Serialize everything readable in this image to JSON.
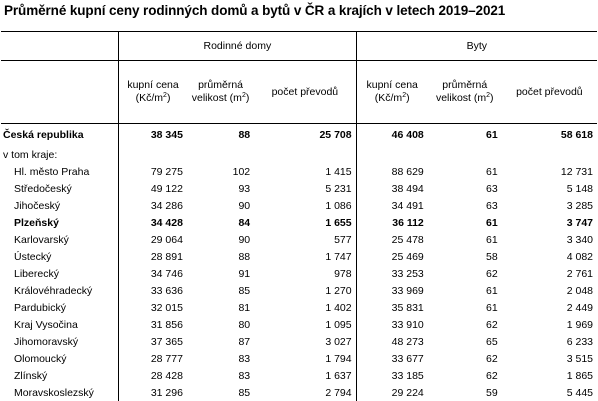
{
  "title": "Průměrné kupní ceny rodinných domů a bytů v ČR a krajích v letech 2019–2021",
  "groups": {
    "houses": "Rodinné domy",
    "flats": "Byty"
  },
  "subheaders": {
    "price_line1": "kupní cena",
    "price_line2": "(Kč/m",
    "price_sup": "2",
    "price_close": ")",
    "size_line1": "průměrná",
    "size_line2": "velikost (m",
    "size_sup": "2",
    "size_close": ")",
    "count": "počet převodů"
  },
  "rows": [
    {
      "label": "Česká republika",
      "h_price": "38 345",
      "h_size": "88",
      "h_count": "25 708",
      "f_price": "46 408",
      "f_size": "61",
      "f_count": "58 618",
      "bold": true,
      "indent": false
    },
    {
      "label": "v tom kraje:",
      "h_price": "",
      "h_size": "",
      "h_count": "",
      "f_price": "",
      "f_size": "",
      "f_count": "",
      "bold": false,
      "indent": false
    },
    {
      "label": "Hl. město Praha",
      "h_price": "79 275",
      "h_size": "102",
      "h_count": "1 415",
      "f_price": "88 629",
      "f_size": "61",
      "f_count": "12 731",
      "bold": false,
      "indent": true
    },
    {
      "label": "Středočeský",
      "h_price": "49 122",
      "h_size": "93",
      "h_count": "5 231",
      "f_price": "38 494",
      "f_size": "63",
      "f_count": "5 148",
      "bold": false,
      "indent": true
    },
    {
      "label": "Jihočeský",
      "h_price": "34 286",
      "h_size": "90",
      "h_count": "1 086",
      "f_price": "34 491",
      "f_size": "63",
      "f_count": "3 285",
      "bold": false,
      "indent": true
    },
    {
      "label": "Plzeňský",
      "h_price": "34 428",
      "h_size": "84",
      "h_count": "1 655",
      "f_price": "36 112",
      "f_size": "61",
      "f_count": "3 747",
      "bold": true,
      "indent": true
    },
    {
      "label": "Karlovarský",
      "h_price": "29 064",
      "h_size": "90",
      "h_count": "577",
      "f_price": "25 478",
      "f_size": "61",
      "f_count": "3 340",
      "bold": false,
      "indent": true
    },
    {
      "label": "Ústecký",
      "h_price": "28 891",
      "h_size": "88",
      "h_count": "1 747",
      "f_price": "25 469",
      "f_size": "58",
      "f_count": "4 082",
      "bold": false,
      "indent": true
    },
    {
      "label": "Liberecký",
      "h_price": "34 746",
      "h_size": "91",
      "h_count": "978",
      "f_price": "33 253",
      "f_size": "62",
      "f_count": "2 761",
      "bold": false,
      "indent": true
    },
    {
      "label": "Královéhradecký",
      "h_price": "33 636",
      "h_size": "85",
      "h_count": "1 270",
      "f_price": "33 969",
      "f_size": "61",
      "f_count": "2 048",
      "bold": false,
      "indent": true
    },
    {
      "label": "Pardubický",
      "h_price": "32 015",
      "h_size": "81",
      "h_count": "1 402",
      "f_price": "35 831",
      "f_size": "61",
      "f_count": "2 449",
      "bold": false,
      "indent": true
    },
    {
      "label": "Kraj Vysočina",
      "h_price": "31 856",
      "h_size": "80",
      "h_count": "1 095",
      "f_price": "33 910",
      "f_size": "62",
      "f_count": "1 969",
      "bold": false,
      "indent": true
    },
    {
      "label": "Jihomoravský",
      "h_price": "37 365",
      "h_size": "87",
      "h_count": "3 027",
      "f_price": "48 273",
      "f_size": "65",
      "f_count": "6 233",
      "bold": false,
      "indent": true
    },
    {
      "label": "Olomoucký",
      "h_price": "28 777",
      "h_size": "83",
      "h_count": "1 794",
      "f_price": "33 677",
      "f_size": "62",
      "f_count": "3 515",
      "bold": false,
      "indent": true
    },
    {
      "label": "Zlínský",
      "h_price": "28 428",
      "h_size": "83",
      "h_count": "1 637",
      "f_price": "33 185",
      "f_size": "62",
      "f_count": "1 865",
      "bold": false,
      "indent": true
    },
    {
      "label": "Moravskoslezský",
      "h_price": "31 296",
      "h_size": "85",
      "h_count": "2 794",
      "f_price": "29 224",
      "f_size": "59",
      "f_count": "5 445",
      "bold": false,
      "indent": true
    }
  ]
}
